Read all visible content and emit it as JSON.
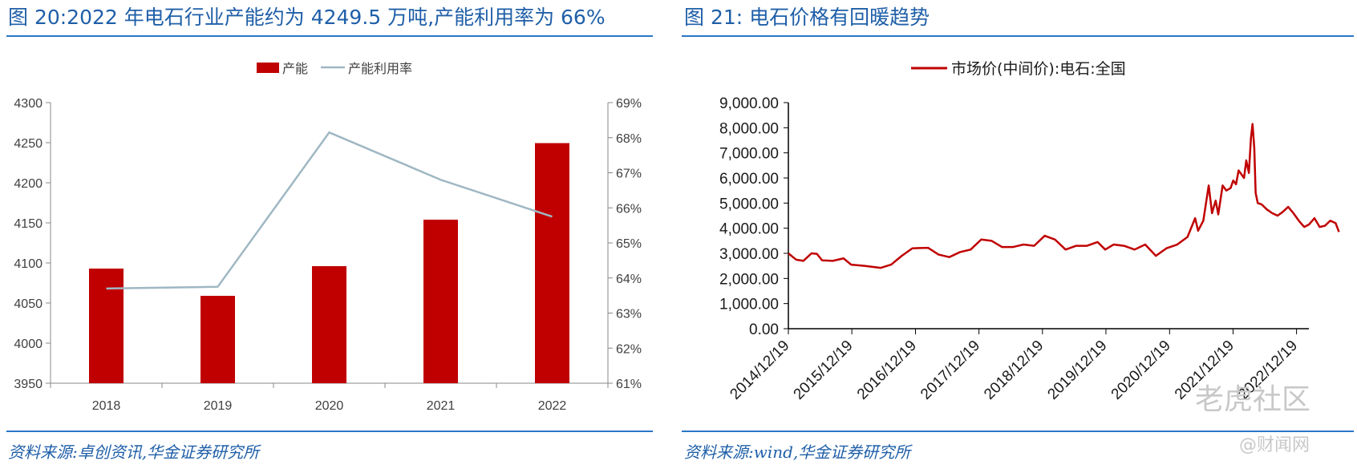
{
  "left": {
    "title": "图 20:2022 年电石行业产能约为 4249.5 万吨,产能利用率为 66%",
    "source": "资料来源:卓创资讯,华金证券研究所"
  },
  "right": {
    "title": "图 21: 电石价格有回暖趋势",
    "source": "资料来源:wind,华金证券研究所"
  },
  "watermark": {
    "line1": "老虎社区",
    "line2": "@财闻网"
  },
  "colors": {
    "bar": "#c00000",
    "line": "#9fb7c3",
    "price": "#c00000",
    "accent": "#1f5fa8"
  },
  "chart_data": [
    {
      "type": "bar",
      "categories": [
        "2018",
        "2019",
        "2020",
        "2021",
        "2022"
      ],
      "series": [
        {
          "name": "产能",
          "type": "bar",
          "axis": "left",
          "values": [
            4093,
            4059,
            4096,
            4154,
            4249.5
          ]
        },
        {
          "name": "产能利用率",
          "type": "line",
          "axis": "right",
          "values": [
            63.7,
            63.75,
            68.15,
            66.8,
            65.75
          ]
        }
      ],
      "ylim": [
        3950,
        4300
      ],
      "y_ticks": [
        "4300",
        "4250",
        "4200",
        "4150",
        "4100",
        "4050",
        "4000",
        "3950"
      ],
      "y2lim": [
        61,
        69
      ],
      "y2_ticks": [
        "69%",
        "68%",
        "67%",
        "66%",
        "65%",
        "64%",
        "63%",
        "62%",
        "61%"
      ],
      "legend_position": "top-center",
      "grid": false
    },
    {
      "type": "line",
      "series": [
        {
          "name": "市场价(中间价):电石:全国",
          "points": [
            [
              "2014-12-19",
              3000
            ],
            [
              "2015-02-01",
              2750
            ],
            [
              "2015-03-15",
              2700
            ],
            [
              "2015-05-01",
              3000
            ],
            [
              "2015-06-01",
              2980
            ],
            [
              "2015-07-01",
              2720
            ],
            [
              "2015-09-01",
              2700
            ],
            [
              "2015-11-01",
              2800
            ],
            [
              "2015-12-15",
              2550
            ],
            [
              "2016-03-01",
              2500
            ],
            [
              "2016-06-01",
              2420
            ],
            [
              "2016-08-01",
              2550
            ],
            [
              "2016-10-01",
              2900
            ],
            [
              "2016-12-01",
              3200
            ],
            [
              "2017-03-01",
              3220
            ],
            [
              "2017-05-01",
              2950
            ],
            [
              "2017-07-01",
              2850
            ],
            [
              "2017-09-01",
              3050
            ],
            [
              "2017-11-01",
              3150
            ],
            [
              "2018-01-01",
              3550
            ],
            [
              "2018-03-01",
              3500
            ],
            [
              "2018-05-01",
              3250
            ],
            [
              "2018-07-01",
              3250
            ],
            [
              "2018-09-01",
              3350
            ],
            [
              "2018-11-01",
              3300
            ],
            [
              "2019-01-01",
              3700
            ],
            [
              "2019-03-01",
              3550
            ],
            [
              "2019-05-01",
              3150
            ],
            [
              "2019-07-01",
              3300
            ],
            [
              "2019-09-01",
              3300
            ],
            [
              "2019-11-01",
              3450
            ],
            [
              "2019-12-15",
              3150
            ],
            [
              "2020-02-01",
              3350
            ],
            [
              "2020-04-01",
              3300
            ],
            [
              "2020-06-01",
              3150
            ],
            [
              "2020-08-01",
              3350
            ],
            [
              "2020-10-01",
              2900
            ],
            [
              "2020-12-01",
              3200
            ],
            [
              "2021-02-01",
              3350
            ],
            [
              "2021-04-01",
              3650
            ],
            [
              "2021-05-15",
              4400
            ],
            [
              "2021-06-01",
              3900
            ],
            [
              "2021-07-01",
              4300
            ],
            [
              "2021-08-01",
              5700
            ],
            [
              "2021-08-20",
              4600
            ],
            [
              "2021-09-10",
              5100
            ],
            [
              "2021-09-25",
              4550
            ],
            [
              "2021-10-20",
              5700
            ],
            [
              "2021-11-10",
              5500
            ],
            [
              "2021-12-05",
              5600
            ],
            [
              "2021-12-20",
              5900
            ],
            [
              "2022-01-05",
              5750
            ],
            [
              "2022-01-20",
              6300
            ],
            [
              "2022-02-20",
              6000
            ],
            [
              "2022-03-05",
              6700
            ],
            [
              "2022-03-20",
              6200
            ],
            [
              "2022-04-01",
              7600
            ],
            [
              "2022-04-10",
              8150
            ],
            [
              "2022-04-20",
              7200
            ],
            [
              "2022-04-28",
              5400
            ],
            [
              "2022-05-10",
              5000
            ],
            [
              "2022-06-01",
              4950
            ],
            [
              "2022-07-01",
              4750
            ],
            [
              "2022-08-01",
              4600
            ],
            [
              "2022-09-01",
              4500
            ],
            [
              "2022-10-01",
              4650
            ],
            [
              "2022-11-01",
              4850
            ],
            [
              "2022-12-01",
              4600
            ],
            [
              "2023-01-01",
              4300
            ],
            [
              "2023-02-01",
              4050
            ],
            [
              "2023-03-01",
              4150
            ],
            [
              "2023-04-01",
              4400
            ],
            [
              "2023-05-01",
              4050
            ],
            [
              "2023-06-01",
              4100
            ],
            [
              "2023-07-01",
              4300
            ],
            [
              "2023-08-01",
              4200
            ],
            [
              "2023-08-20",
              3850
            ]
          ]
        }
      ],
      "x_ticks": [
        "2014/12/19",
        "2015/12/19",
        "2016/12/19",
        "2017/12/19",
        "2018/12/19",
        "2019/12/19",
        "2020/12/19",
        "2021/12/19",
        "2022/12/19"
      ],
      "ylim": [
        0,
        9000
      ],
      "y_ticks": [
        "9,000.00",
        "8,000.00",
        "7,000.00",
        "6,000.00",
        "5,000.00",
        "4,000.00",
        "3,000.00",
        "2,000.00",
        "1,000.00",
        "0.00"
      ],
      "legend_position": "top-center",
      "grid": false
    }
  ]
}
